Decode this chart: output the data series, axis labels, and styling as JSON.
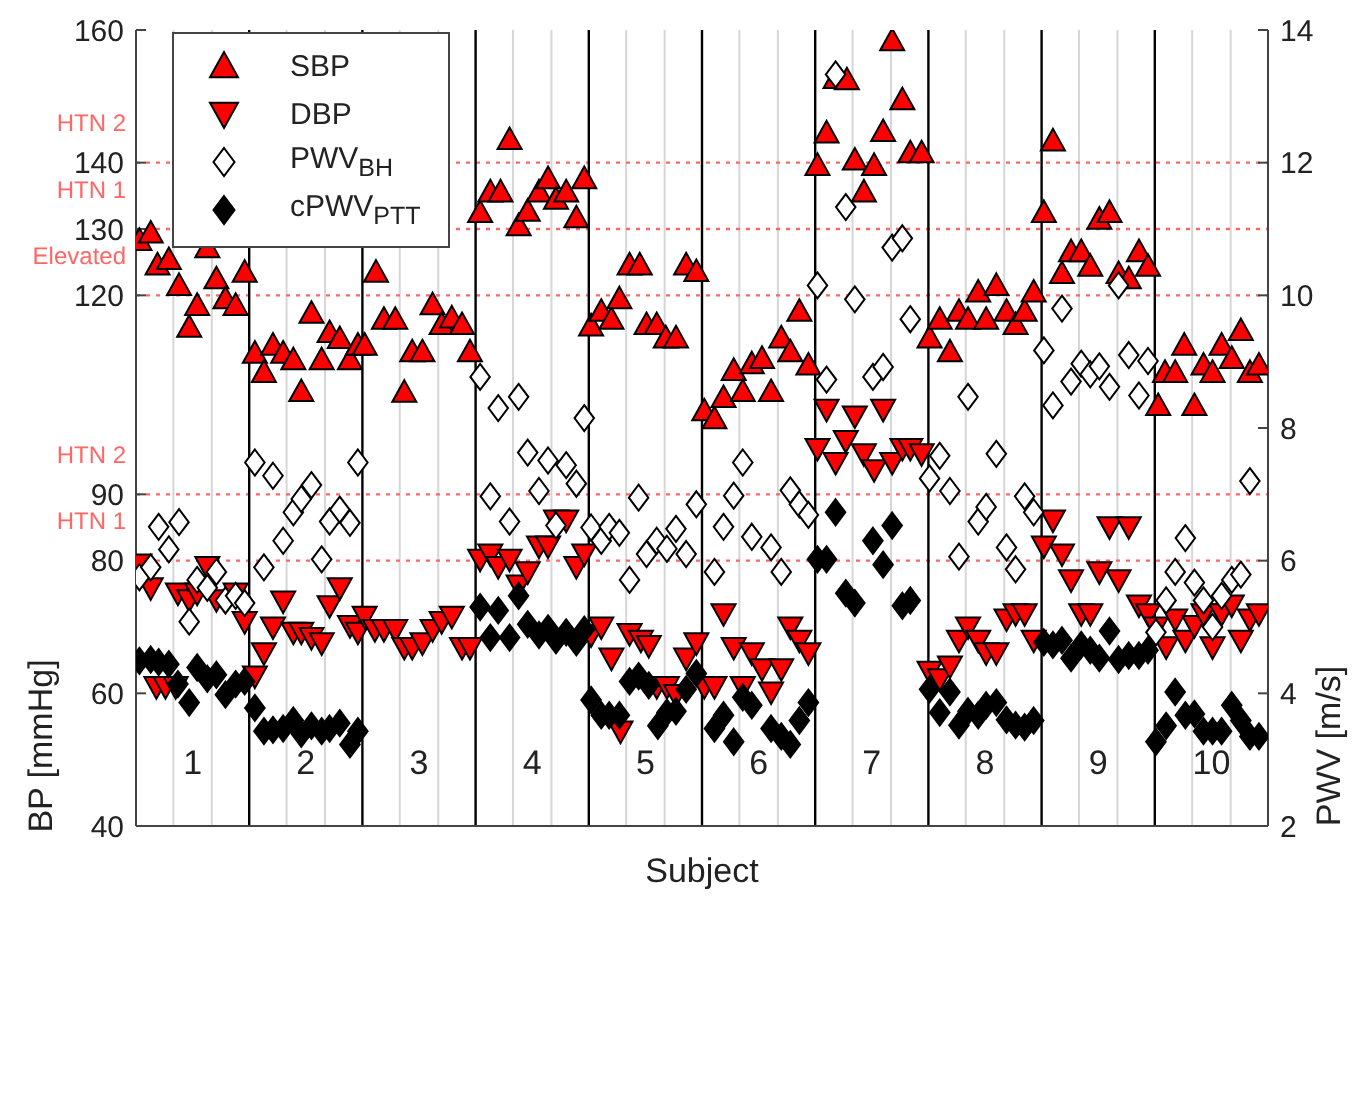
{
  "chart_data": {
    "type": "scatter",
    "xlabel": "Subject",
    "ylabel": "BP [mmHg]",
    "y2label": "PWV [m/s]",
    "xlim": [
      0,
      10
    ],
    "xticks": [
      {
        "value": 0.5,
        "label": "1"
      },
      {
        "value": 1.5,
        "label": "2"
      },
      {
        "value": 2.5,
        "label": "3"
      },
      {
        "value": 3.5,
        "label": "4"
      },
      {
        "value": 4.5,
        "label": "5"
      },
      {
        "value": 5.5,
        "label": "6"
      },
      {
        "value": 6.5,
        "label": "7"
      },
      {
        "value": 7.5,
        "label": "8"
      },
      {
        "value": 8.5,
        "label": "9"
      },
      {
        "value": 9.5,
        "label": "10"
      },
      {
        "value": 0.33,
        "label": null
      },
      {
        "value": 0.67,
        "label": null
      },
      {
        "value": 1.33,
        "label": null
      },
      {
        "value": 1.67,
        "label": null
      },
      {
        "value": 2.33,
        "label": null
      },
      {
        "value": 2.67,
        "label": null
      },
      {
        "value": 3.33,
        "label": null
      },
      {
        "value": 3.67,
        "label": null
      },
      {
        "value": 4.33,
        "label": null
      },
      {
        "value": 4.67,
        "label": null
      },
      {
        "value": 5.33,
        "label": null
      },
      {
        "value": 5.67,
        "label": null
      },
      {
        "value": 6.33,
        "label": null
      },
      {
        "value": 6.67,
        "label": null
      },
      {
        "value": 7.33,
        "label": null
      },
      {
        "value": 7.67,
        "label": null
      },
      {
        "value": 8.33,
        "label": null
      },
      {
        "value": 8.67,
        "label": null
      },
      {
        "value": 9.33,
        "label": null
      },
      {
        "value": 9.67,
        "label": null
      }
    ],
    "ylim": [
      40,
      160
    ],
    "yticks": [
      40,
      60,
      80,
      90,
      120,
      130,
      140,
      160
    ],
    "y2lim": [
      2,
      14
    ],
    "y2ticks": [
      2,
      4,
      6,
      8,
      10,
      12,
      14
    ],
    "grid": "x",
    "legend": "top left",
    "ref_lines": [
      {
        "axis": "y",
        "value": 140,
        "label": "HTN 2",
        "color": "#ff6666",
        "line_style": "dotted"
      },
      {
        "axis": "y",
        "value": 130,
        "label": "HTN 1",
        "color": "#ff6666",
        "line_style": "dotted"
      },
      {
        "axis": "y",
        "value": 120,
        "label": "Elevated",
        "color": "#ff6666",
        "line_style": "dotted"
      },
      {
        "axis": "y",
        "value": 90,
        "label": "HTN 2",
        "color": "#ff6666",
        "line_style": "dotted"
      },
      {
        "axis": "y",
        "value": 80,
        "label": "HTN 1",
        "color": "#ff6666",
        "line_style": "dotted"
      },
      {
        "axis": "x",
        "value": 1,
        "color": "#000000",
        "line_style": "solid"
      },
      {
        "axis": "x",
        "value": 2,
        "color": "#000000",
        "line_style": "solid"
      },
      {
        "axis": "x",
        "value": 3,
        "color": "#000000",
        "line_style": "solid"
      },
      {
        "axis": "x",
        "value": 4,
        "color": "#000000",
        "line_style": "solid"
      },
      {
        "axis": "x",
        "value": 5,
        "color": "#000000",
        "line_style": "solid"
      },
      {
        "axis": "x",
        "value": 6,
        "color": "#000000",
        "line_style": "solid"
      },
      {
        "axis": "x",
        "value": 7,
        "color": "#000000",
        "line_style": "solid"
      },
      {
        "axis": "x",
        "value": 8,
        "color": "#000000",
        "line_style": "solid"
      },
      {
        "axis": "x",
        "value": 9,
        "color": "#000000",
        "line_style": "solid"
      }
    ],
    "series": [
      {
        "name": "SBP",
        "color": "#ff0000",
        "marker": "triangle",
        "x": [
          0.03,
          0.13,
          0.19,
          0.29,
          0.38,
          0.47,
          0.54,
          0.63,
          0.71,
          0.79,
          0.88,
          0.96,
          1.05,
          1.13,
          1.21,
          1.3,
          1.39,
          1.46,
          1.55,
          1.64,
          1.71,
          1.8,
          1.89,
          1.96,
          2.02,
          2.12,
          2.19,
          2.29,
          2.37,
          2.44,
          2.53,
          2.62,
          2.7,
          2.79,
          2.88,
          2.95,
          3.04,
          3.13,
          3.22,
          3.3,
          3.38,
          3.46,
          3.56,
          3.64,
          3.71,
          3.8,
          3.89,
          3.96,
          4.02,
          4.11,
          4.2,
          4.27,
          4.36,
          4.45,
          4.51,
          4.6,
          4.68,
          4.77,
          4.86,
          4.95,
          5.02,
          5.11,
          5.19,
          5.28,
          5.36,
          5.44,
          5.53,
          5.61,
          5.7,
          5.78,
          5.86,
          5.94,
          6.02,
          6.1,
          6.18,
          6.28,
          6.35,
          6.43,
          6.52,
          6.6,
          6.68,
          6.77,
          6.84,
          6.94,
          7.01,
          7.1,
          7.19,
          7.27,
          7.35,
          7.44,
          7.51,
          7.6,
          7.69,
          7.77,
          7.85,
          7.93,
          8.02,
          8.1,
          8.18,
          8.26,
          8.35,
          8.43,
          8.51,
          8.6,
          8.68,
          8.77,
          8.86,
          8.94,
          9.03,
          9.09,
          9.18,
          9.26,
          9.35,
          9.43,
          9.51,
          9.59,
          9.68,
          9.76,
          9.84,
          9.92
        ],
        "values": [
          128.3,
          129.4,
          124.6,
          125.4,
          121.5,
          115.2,
          118.5,
          127.2,
          122.5,
          119.5,
          118.5,
          123.5,
          111.3,
          108.4,
          112.5,
          111.3,
          110.3,
          105.5,
          117.3,
          110.3,
          114.4,
          113.5,
          110.3,
          112.5,
          112.5,
          123.5,
          116.4,
          116.4,
          105.4,
          111.5,
          111.5,
          118.6,
          115.6,
          116.6,
          115.6,
          111.5,
          132.5,
          135.6,
          135.6,
          143.5,
          130.5,
          132.7,
          135.6,
          137.6,
          134.5,
          135.6,
          131.7,
          137.6,
          115.4,
          117.6,
          116.4,
          119.5,
          124.6,
          124.6,
          115.6,
          115.6,
          113.6,
          113.6,
          124.6,
          123.6,
          102.6,
          101.4,
          104.6,
          108.7,
          105.5,
          109.7,
          110.5,
          105.5,
          113.6,
          111.5,
          117.6,
          109.5,
          139.6,
          144.5,
          152.7,
          152.5,
          140.4,
          135.6,
          139.6,
          144.7,
          158.4,
          149.5,
          141.5,
          141.5,
          113.6,
          116.4,
          111.5,
          117.6,
          116.4,
          120.5,
          116.4,
          121.5,
          117.6,
          115.6,
          117.6,
          120.5,
          132.5,
          143.3,
          123.3,
          126.6,
          126.6,
          124.4,
          131.5,
          132.5,
          123.3,
          122.5,
          126.6,
          124.4,
          103.4,
          108.4,
          108.4,
          112.5,
          103.4,
          109.5,
          108.4,
          112.5,
          110.5,
          114.7,
          108.4,
          109.5
        ]
      },
      {
        "name": "DBP",
        "color": "#ff0000",
        "marker": "triangle-down",
        "x": [
          0.03,
          0.13,
          0.18,
          0.26,
          0.35,
          0.37,
          0.47,
          0.54,
          0.63,
          0.71,
          0.88,
          0.96,
          1.05,
          1.13,
          1.21,
          1.3,
          1.39,
          1.46,
          1.55,
          1.64,
          1.71,
          1.8,
          1.89,
          1.96,
          2.02,
          2.11,
          2.19,
          2.29,
          2.37,
          2.44,
          2.53,
          2.62,
          2.7,
          2.79,
          2.88,
          2.95,
          3.04,
          3.13,
          3.2,
          3.3,
          3.38,
          3.46,
          3.56,
          3.64,
          3.71,
          3.8,
          3.89,
          3.96,
          4.02,
          4.11,
          4.2,
          4.28,
          4.36,
          4.46,
          4.53,
          4.6,
          4.69,
          4.77,
          4.86,
          4.95,
          5.02,
          5.11,
          5.19,
          5.28,
          5.36,
          5.44,
          5.53,
          5.61,
          5.7,
          5.78,
          5.86,
          5.94,
          6.02,
          6.1,
          6.18,
          6.27,
          6.35,
          6.43,
          6.52,
          6.6,
          6.68,
          6.77,
          6.84,
          6.94,
          7.01,
          7.1,
          7.19,
          7.27,
          7.35,
          7.44,
          7.51,
          7.6,
          7.69,
          7.77,
          7.85,
          7.93,
          8.02,
          8.1,
          8.18,
          8.26,
          8.35,
          8.43,
          8.51,
          8.6,
          8.68,
          8.77,
          8.86,
          8.94,
          9.01,
          9.1,
          9.18,
          9.27,
          9.35,
          9.43,
          9.51,
          9.59,
          9.68,
          9.76,
          9.84,
          9.92
        ],
        "values": [
          79.5,
          75.9,
          61.0,
          61.0,
          61.0,
          75.1,
          74.1,
          75.1,
          79.1,
          74.1,
          75.1,
          70.8,
          62.6,
          66.1,
          70.0,
          73.9,
          69.2,
          69.2,
          68.4,
          67.6,
          73.2,
          75.9,
          70.2,
          69.2,
          71.6,
          69.6,
          69.6,
          69.6,
          66.9,
          66.9,
          67.6,
          69.6,
          70.8,
          71.6,
          66.9,
          66.9,
          80.2,
          81.0,
          79.1,
          80.2,
          76.3,
          78.3,
          82.2,
          82.2,
          86.1,
          86.1,
          79.1,
          81.0,
          68.8,
          70.0,
          65.3,
          54.3,
          69.0,
          68.0,
          67.2,
          61.0,
          61.0,
          59.8,
          65.3,
          67.6,
          61.0,
          61.0,
          72.0,
          66.9,
          61.0,
          66.1,
          63.7,
          60.2,
          63.7,
          70.0,
          68.0,
          66.1,
          96.9,
          102.8,
          94.8,
          98.1,
          101.8,
          96.1,
          93.7,
          102.8,
          94.8,
          96.9,
          96.9,
          96.1,
          63.3,
          62.2,
          64.1,
          68.0,
          70.0,
          68.0,
          66.1,
          66.1,
          71.2,
          72.0,
          72.0,
          68.0,
          82.2,
          86.1,
          81.0,
          77.1,
          72.0,
          72.0,
          78.3,
          85.1,
          77.1,
          85.1,
          73.3,
          72.0,
          70.0,
          67.0,
          71.2,
          68.0,
          70.2,
          72.0,
          67.0,
          72.0,
          73.3,
          68.0,
          71.2,
          72.0
        ]
      },
      {
        "name": "PWV$_{BH}$",
        "color": "#ffffff",
        "marker": "diamond",
        "axis": "y2",
        "x": [
          0.03,
          0.13,
          0.2,
          0.29,
          0.38,
          0.47,
          0.54,
          0.63,
          0.71,
          0.79,
          0.88,
          0.96,
          1.05,
          1.13,
          1.21,
          1.3,
          1.39,
          1.46,
          1.55,
          1.64,
          1.71,
          1.8,
          1.89,
          1.96,
          3.04,
          3.13,
          3.2,
          3.3,
          3.38,
          3.46,
          3.56,
          3.64,
          3.71,
          3.8,
          3.89,
          3.96,
          4.02,
          4.11,
          4.18,
          4.27,
          4.36,
          4.44,
          4.51,
          4.6,
          4.69,
          4.77,
          4.86,
          4.95,
          5.11,
          5.19,
          5.28,
          5.36,
          5.44,
          5.61,
          5.7,
          5.78,
          5.86,
          5.94,
          6.02,
          6.1,
          6.18,
          6.27,
          6.35,
          6.51,
          6.6,
          6.68,
          6.77,
          6.84,
          7.01,
          7.1,
          7.19,
          7.27,
          7.35,
          7.44,
          7.51,
          7.6,
          7.69,
          7.77,
          7.85,
          7.93,
          8.02,
          8.1,
          8.18,
          8.26,
          8.35,
          8.43,
          8.51,
          8.6,
          8.68,
          8.77,
          8.86,
          8.94,
          9.01,
          9.1,
          9.18,
          9.27,
          9.35,
          9.43,
          9.51,
          9.59,
          9.68,
          9.76,
          9.84
        ],
        "values": [
          5.75,
          5.9,
          6.51,
          6.17,
          6.58,
          5.08,
          5.71,
          5.59,
          5.83,
          5.4,
          5.47,
          5.36,
          7.48,
          5.9,
          7.28,
          6.3,
          6.73,
          6.93,
          7.14,
          6.02,
          6.59,
          6.77,
          6.57,
          7.48,
          8.77,
          6.97,
          8.3,
          6.59,
          8.47,
          7.63,
          7.05,
          7.51,
          6.53,
          7.44,
          7.16,
          8.15,
          6.5,
          6.3,
          6.51,
          6.42,
          5.71,
          6.95,
          6.1,
          6.3,
          6.18,
          6.48,
          6.1,
          6.85,
          5.83,
          6.51,
          6.98,
          7.48,
          6.36,
          6.2,
          5.83,
          7.06,
          6.85,
          6.69,
          10.15,
          8.73,
          13.33,
          11.33,
          9.94,
          8.77,
          8.92,
          10.72,
          10.86,
          9.64,
          7.24,
          7.58,
          7.05,
          6.06,
          8.47,
          6.59,
          6.81,
          7.61,
          6.2,
          5.87,
          6.97,
          6.73,
          9.17,
          8.34,
          9.8,
          8.7,
          8.97,
          8.81,
          8.93,
          8.62,
          10.15,
          9.1,
          8.49,
          9.01,
          4.92,
          5.4,
          5.83,
          6.34,
          5.67,
          5.4,
          5.0,
          5.47,
          5.71,
          5.79,
          7.2
        ]
      },
      {
        "name": "cPWV$_{PTT}$",
        "color": "#000000",
        "marker": "diamond",
        "axis": "y2",
        "x": [
          0.03,
          0.13,
          0.2,
          0.29,
          0.37,
          0.47,
          0.54,
          0.63,
          0.71,
          0.79,
          0.88,
          0.96,
          1.05,
          1.13,
          1.21,
          1.3,
          1.39,
          1.46,
          1.55,
          1.64,
          1.71,
          1.8,
          1.89,
          1.96,
          3.04,
          3.13,
          3.2,
          3.3,
          3.38,
          3.46,
          3.56,
          3.64,
          3.71,
          3.8,
          3.89,
          3.96,
          4.02,
          4.11,
          4.18,
          4.27,
          4.36,
          4.44,
          4.53,
          4.61,
          4.69,
          4.77,
          4.86,
          4.95,
          5.11,
          5.19,
          5.28,
          5.36,
          5.44,
          5.61,
          5.7,
          5.78,
          5.86,
          5.94,
          6.02,
          6.1,
          6.18,
          6.27,
          6.35,
          6.51,
          6.6,
          6.68,
          6.77,
          6.84,
          7.01,
          7.1,
          7.19,
          7.27,
          7.35,
          7.44,
          7.51,
          7.6,
          7.69,
          7.77,
          7.85,
          7.93,
          8.02,
          8.1,
          8.18,
          8.26,
          8.35,
          8.43,
          8.51,
          8.6,
          8.68,
          8.77,
          8.86,
          8.94,
          9.01,
          9.1,
          9.18,
          9.27,
          9.35,
          9.43,
          9.51,
          9.59,
          9.68,
          9.76,
          9.84,
          9.92
        ],
        "values": [
          4.49,
          4.51,
          4.47,
          4.44,
          4.14,
          3.86,
          4.39,
          4.22,
          4.28,
          3.98,
          4.14,
          4.18,
          3.78,
          3.43,
          3.45,
          3.47,
          3.59,
          3.39,
          3.51,
          3.43,
          3.47,
          3.55,
          3.23,
          3.43,
          5.3,
          4.84,
          5.25,
          4.84,
          5.47,
          5.04,
          4.88,
          4.98,
          4.8,
          4.92,
          4.77,
          4.96,
          3.9,
          3.67,
          3.67,
          3.67,
          4.18,
          4.26,
          4.12,
          3.51,
          3.71,
          3.73,
          4.06,
          4.3,
          3.47,
          3.67,
          3.27,
          3.94,
          3.82,
          3.47,
          3.35,
          3.23,
          3.59,
          3.86,
          6.02,
          6.02,
          6.73,
          5.51,
          5.36,
          6.3,
          5.94,
          6.53,
          5.32,
          5.4,
          4.06,
          3.71,
          4.02,
          3.52,
          3.73,
          3.67,
          3.82,
          3.86,
          3.6,
          3.52,
          3.49,
          3.59,
          4.77,
          4.73,
          4.8,
          4.53,
          4.73,
          4.65,
          4.53,
          4.94,
          4.51,
          4.57,
          4.57,
          4.65,
          3.27,
          3.51,
          4.02,
          3.67,
          3.69,
          3.43,
          3.43,
          3.43,
          3.82,
          3.59,
          3.35,
          3.35
        ]
      }
    ]
  }
}
